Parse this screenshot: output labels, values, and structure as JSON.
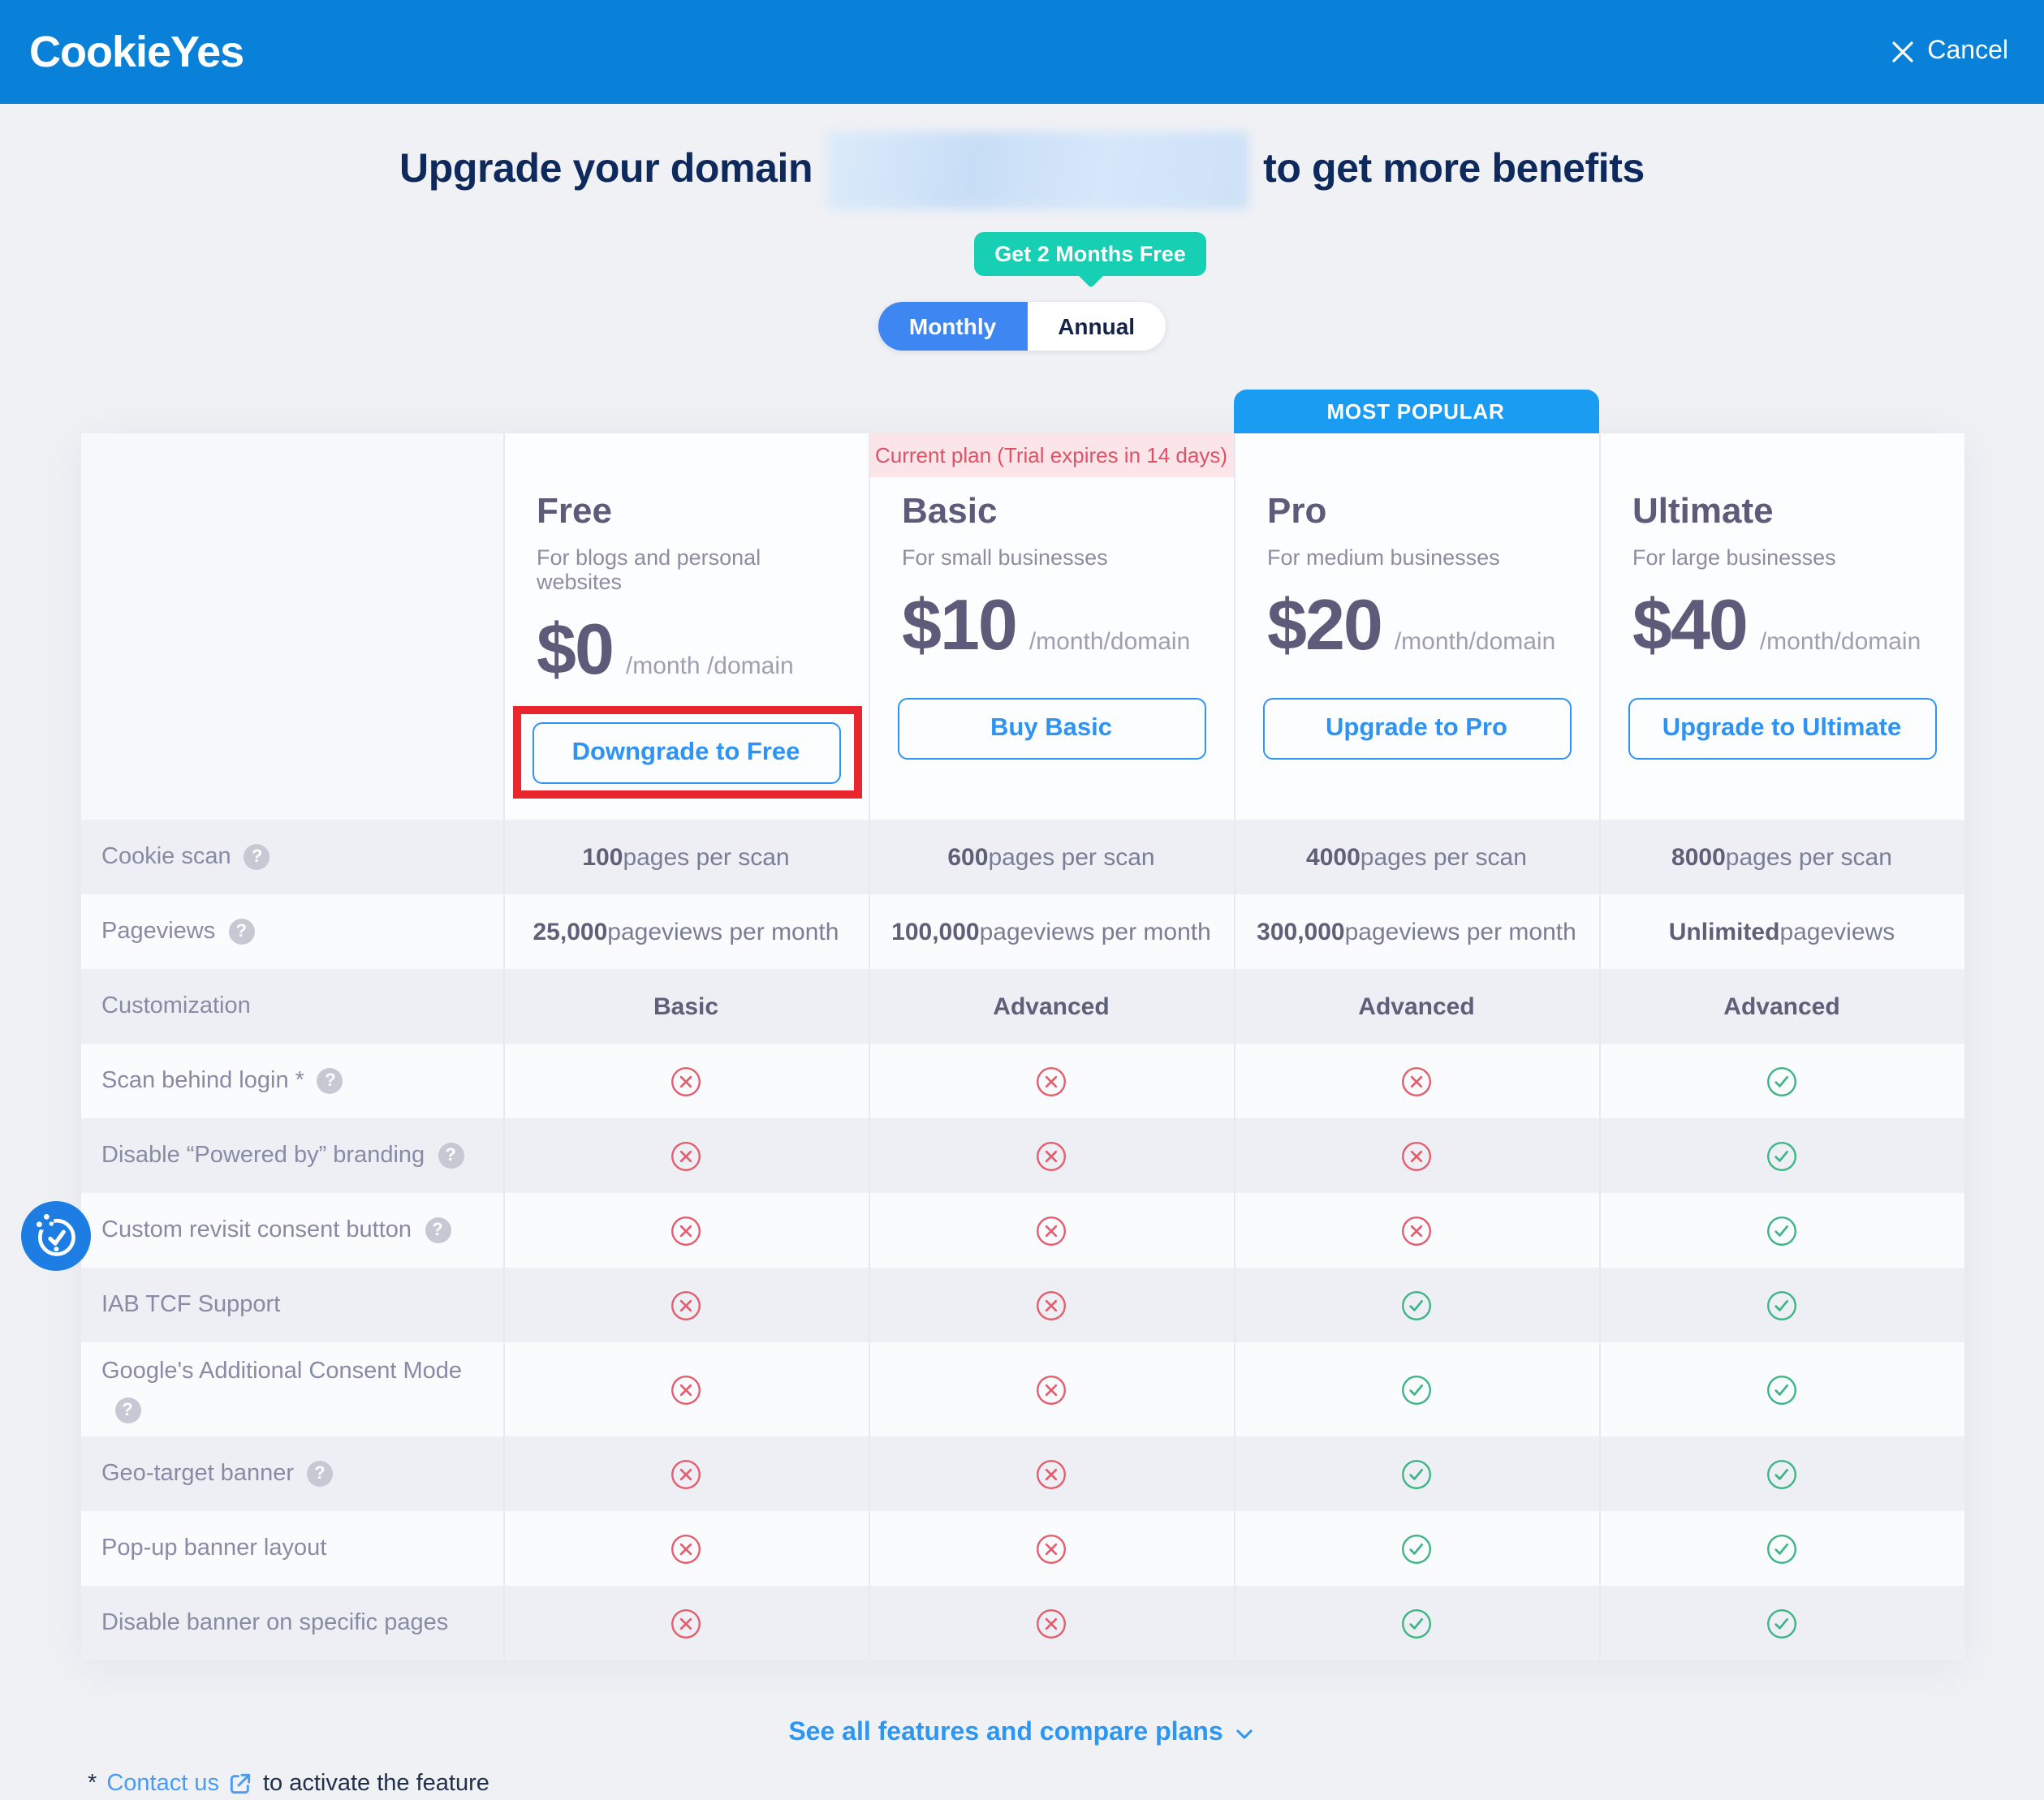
{
  "header": {
    "brand": "CookieYes",
    "cancel_label": "Cancel"
  },
  "title": {
    "prefix": "Upgrade your domain",
    "suffix": "to get more benefits"
  },
  "billing": {
    "badge": "Get 2 Months Free",
    "monthly": "Monthly",
    "annual": "Annual",
    "selected": "Monthly"
  },
  "most_popular_label": "MOST POPULAR",
  "current_plan_label": "Current plan (Trial expires in 14 days)",
  "plans": [
    {
      "name": "Free",
      "description": "For blogs and personal websites",
      "price": "$0",
      "unit": "/month /domain",
      "cta": "Downgrade to Free",
      "state": "highlighted"
    },
    {
      "name": "Basic",
      "description": "For small businesses",
      "price": "$10",
      "unit": "/month/domain",
      "cta": "Buy Basic",
      "state": "current-plan"
    },
    {
      "name": "Pro",
      "description": "For medium businesses",
      "price": "$20",
      "unit": "/month/domain",
      "cta": "Upgrade to Pro",
      "state": "most-popular"
    },
    {
      "name": "Ultimate",
      "description": "For large businesses",
      "price": "$40",
      "unit": "/month/domain",
      "cta": "Upgrade to Ultimate",
      "state": ""
    }
  ],
  "features": [
    {
      "label": "Cookie scan",
      "help": true,
      "values": [
        {
          "strong": "100",
          "rest": " pages per scan"
        },
        {
          "strong": "600",
          "rest": " pages per scan"
        },
        {
          "strong": "4000",
          "rest": " pages per scan"
        },
        {
          "strong": "8000",
          "rest": " pages per scan"
        }
      ]
    },
    {
      "label": "Pageviews",
      "help": true,
      "values": [
        {
          "strong": "25,000",
          "rest": " pageviews per month"
        },
        {
          "strong": "100,000",
          "rest": " pageviews per month"
        },
        {
          "strong": "300,000",
          "rest": " pageviews per month"
        },
        {
          "strong": "Unlimited",
          "rest": " pageviews"
        }
      ]
    },
    {
      "label": "Customization",
      "help": false,
      "values": [
        {
          "strong": "Basic",
          "rest": ""
        },
        {
          "strong": "Advanced",
          "rest": ""
        },
        {
          "strong": "Advanced",
          "rest": ""
        },
        {
          "strong": "Advanced",
          "rest": ""
        }
      ]
    },
    {
      "label": "Scan behind login *",
      "help": true,
      "values": [
        {
          "icon": "cross"
        },
        {
          "icon": "cross"
        },
        {
          "icon": "cross"
        },
        {
          "icon": "check"
        }
      ]
    },
    {
      "label": "Disable “Powered by” branding",
      "help": true,
      "values": [
        {
          "icon": "cross"
        },
        {
          "icon": "cross"
        },
        {
          "icon": "cross"
        },
        {
          "icon": "check"
        }
      ]
    },
    {
      "label": "Custom revisit consent button",
      "help": true,
      "values": [
        {
          "icon": "cross"
        },
        {
          "icon": "cross"
        },
        {
          "icon": "cross"
        },
        {
          "icon": "check"
        }
      ]
    },
    {
      "label": "IAB TCF Support",
      "help": false,
      "values": [
        {
          "icon": "cross"
        },
        {
          "icon": "cross"
        },
        {
          "icon": "check"
        },
        {
          "icon": "check"
        }
      ]
    },
    {
      "label": "Google's Additional Consent Mode",
      "help": true,
      "values": [
        {
          "icon": "cross"
        },
        {
          "icon": "cross"
        },
        {
          "icon": "check"
        },
        {
          "icon": "check"
        }
      ]
    },
    {
      "label": "Geo-target banner",
      "help": true,
      "values": [
        {
          "icon": "cross"
        },
        {
          "icon": "cross"
        },
        {
          "icon": "check"
        },
        {
          "icon": "check"
        }
      ]
    },
    {
      "label": "Pop-up banner layout",
      "help": false,
      "values": [
        {
          "icon": "cross"
        },
        {
          "icon": "cross"
        },
        {
          "icon": "check"
        },
        {
          "icon": "check"
        }
      ]
    },
    {
      "label": "Disable banner on specific pages",
      "help": false,
      "values": [
        {
          "icon": "cross"
        },
        {
          "icon": "cross"
        },
        {
          "icon": "check"
        },
        {
          "icon": "check"
        }
      ]
    }
  ],
  "footer": {
    "see_all": "See all features and compare plans",
    "footnote_star": "*",
    "contact_link": "Contact us",
    "footnote_suffix": "to activate the feature"
  },
  "colors": {
    "header_blue": "#0a81d8",
    "toggle_blue": "#3e87f2",
    "teal_badge": "#17cfb3",
    "most_popular_blue": "#1b9cf3",
    "button_blue": "#2f93f4",
    "check_green": "#3cb584",
    "cross_red": "#e35d6d",
    "current_plan_pink": "#fbe5e9",
    "highlight_red": "#e9262d"
  }
}
